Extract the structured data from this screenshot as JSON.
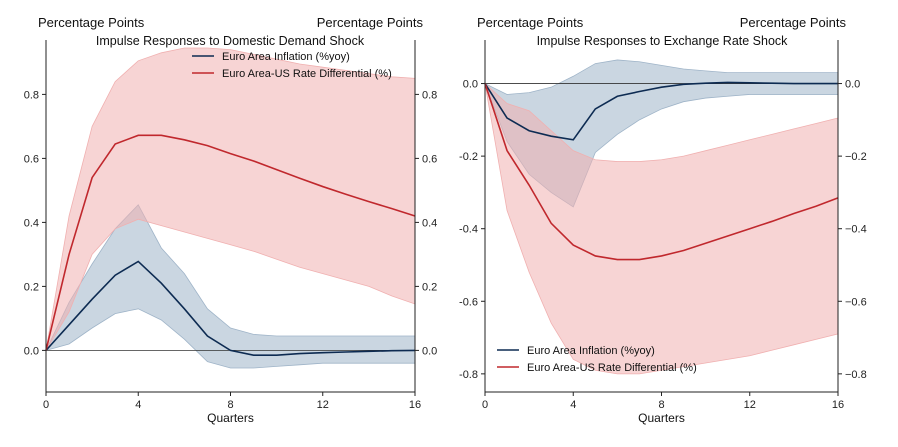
{
  "colors": {
    "inflation": "#0d2b52",
    "inflation_band": "#9fb4c8",
    "rate_diff": "#c0282d",
    "rate_diff_band": "#f0b0b0",
    "axis": "#222222"
  },
  "chart_data": [
    {
      "type": "line",
      "title": "Impulse Responses to Domestic Demand Shock",
      "left_unit_label": "Percentage Points",
      "right_unit_label": "Percentage Points",
      "xlabel": "Quarters",
      "xlim": [
        0,
        16
      ],
      "ylim": [
        -0.13,
        0.97
      ],
      "x_ticks": [
        0,
        4,
        8,
        12,
        16
      ],
      "x_tick_labels": [
        "0",
        "4",
        "8",
        "12",
        "16"
      ],
      "y_ticks": [
        0.0,
        0.2,
        0.4,
        0.6,
        0.8
      ],
      "y_tick_labels": [
        "0.0",
        "0.2",
        "0.4",
        "0.6",
        "0.8"
      ],
      "right_y_tick_labels": [
        "0.0",
        "0.2",
        "0.4",
        "0.6",
        "0.8"
      ],
      "zero_line": true,
      "legend_position": "top-center",
      "x": [
        0,
        1,
        2,
        3,
        4,
        5,
        6,
        7,
        8,
        9,
        10,
        11,
        12,
        13,
        14,
        15,
        16
      ],
      "series": [
        {
          "name": "Euro Area Inflation (%yoy)",
          "color_key": "inflation",
          "values": [
            0.0,
            0.08,
            0.16,
            0.235,
            0.278,
            0.21,
            0.13,
            0.045,
            0.0,
            -0.015,
            -0.015,
            -0.01,
            -0.007,
            -0.005,
            -0.003,
            -0.001,
            0.0
          ],
          "lower": [
            0.0,
            0.02,
            0.07,
            0.115,
            0.13,
            0.095,
            0.035,
            -0.035,
            -0.055,
            -0.055,
            -0.05,
            -0.045,
            -0.04,
            -0.04,
            -0.04,
            -0.04,
            -0.04
          ],
          "upper": [
            0.0,
            0.15,
            0.27,
            0.38,
            0.455,
            0.32,
            0.24,
            0.13,
            0.07,
            0.05,
            0.045,
            0.045,
            0.045,
            0.045,
            0.045,
            0.045,
            0.045
          ]
        },
        {
          "name": "Euro Area-US Rate Differential (%)",
          "color_key": "rate_diff",
          "values": [
            0.0,
            0.3,
            0.54,
            0.645,
            0.672,
            0.672,
            0.658,
            0.64,
            0.615,
            0.592,
            0.565,
            0.538,
            0.512,
            0.488,
            0.465,
            0.443,
            0.42
          ],
          "lower": [
            0.0,
            0.12,
            0.3,
            0.38,
            0.41,
            0.39,
            0.37,
            0.35,
            0.33,
            0.31,
            0.285,
            0.26,
            0.24,
            0.22,
            0.2,
            0.17,
            0.145
          ],
          "upper": [
            0.0,
            0.42,
            0.7,
            0.84,
            0.905,
            0.93,
            0.945,
            0.945,
            0.94,
            0.925,
            0.91,
            0.895,
            0.885,
            0.875,
            0.865,
            0.855,
            0.85
          ]
        }
      ]
    },
    {
      "type": "line",
      "title": "Impulse Responses to Exchange Rate Shock",
      "left_unit_label": "Percentage Points",
      "right_unit_label": "Percentage Points",
      "xlabel": "Quarters",
      "xlim": [
        0,
        16
      ],
      "ylim": [
        -0.85,
        0.12
      ],
      "x_ticks": [
        0,
        4,
        8,
        12,
        16
      ],
      "x_tick_labels": [
        "0",
        "4",
        "8",
        "12",
        "16"
      ],
      "y_ticks": [
        0.0,
        -0.2,
        -0.4,
        -0.6,
        -0.8
      ],
      "y_tick_labels": [
        "0.0",
        "-0.2",
        "-0.4",
        "-0.6",
        "-0.8"
      ],
      "right_y_tick_labels": [
        "0.0",
        "−0.2",
        "−0.4",
        "−0.6",
        "−0.8"
      ],
      "zero_line": true,
      "legend_position": "bottom-left",
      "x": [
        0,
        1,
        2,
        3,
        4,
        5,
        6,
        7,
        8,
        9,
        10,
        11,
        12,
        13,
        14,
        15,
        16
      ],
      "series": [
        {
          "name": "Euro Area Inflation (%yoy)",
          "color_key": "inflation",
          "values": [
            0.0,
            -0.095,
            -0.13,
            -0.145,
            -0.155,
            -0.07,
            -0.035,
            -0.022,
            -0.01,
            -0.002,
            0.001,
            0.003,
            0.002,
            0.001,
            0.0,
            0.0,
            0.0
          ],
          "lower": [
            0.0,
            -0.16,
            -0.25,
            -0.3,
            -0.34,
            -0.19,
            -0.14,
            -0.1,
            -0.07,
            -0.05,
            -0.04,
            -0.035,
            -0.03,
            -0.03,
            -0.03,
            -0.03,
            -0.03
          ],
          "upper": [
            0.0,
            -0.03,
            -0.025,
            -0.01,
            0.02,
            0.055,
            0.065,
            0.06,
            0.05,
            0.04,
            0.035,
            0.03,
            0.03,
            0.03,
            0.03,
            0.03,
            0.03
          ]
        },
        {
          "name": "Euro Area-US Rate Differential (%)",
          "color_key": "rate_diff",
          "values": [
            0.0,
            -0.185,
            -0.28,
            -0.385,
            -0.445,
            -0.475,
            -0.485,
            -0.485,
            -0.475,
            -0.46,
            -0.44,
            -0.42,
            -0.4,
            -0.38,
            -0.358,
            -0.338,
            -0.315
          ],
          "lower": [
            0.0,
            -0.35,
            -0.52,
            -0.66,
            -0.76,
            -0.79,
            -0.8,
            -0.8,
            -0.79,
            -0.78,
            -0.77,
            -0.76,
            -0.75,
            -0.735,
            -0.72,
            -0.705,
            -0.69
          ],
          "upper": [
            0.0,
            -0.055,
            -0.075,
            -0.13,
            -0.185,
            -0.21,
            -0.215,
            -0.215,
            -0.21,
            -0.2,
            -0.185,
            -0.17,
            -0.155,
            -0.14,
            -0.125,
            -0.11,
            -0.095
          ]
        }
      ]
    }
  ]
}
